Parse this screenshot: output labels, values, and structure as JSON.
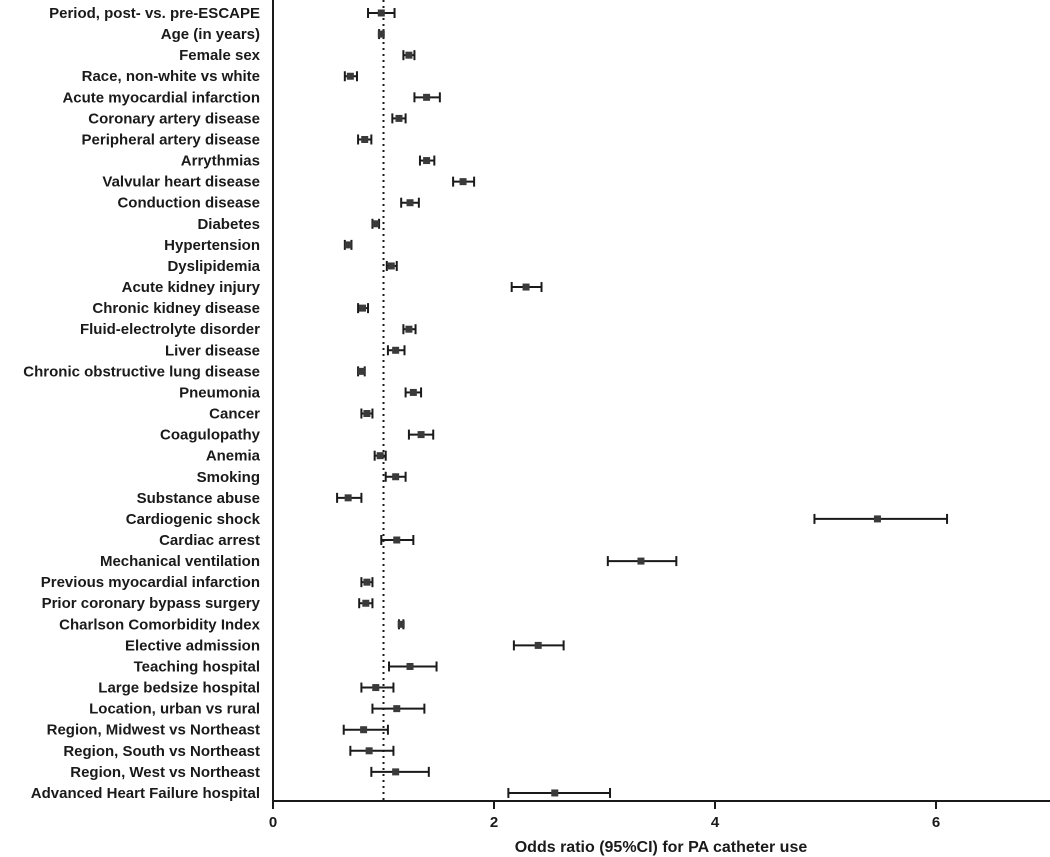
{
  "chart_data": {
    "type": "forest",
    "xlabel": "Odds ratio (95%CI) for PA catheter use",
    "xlim": [
      0,
      7
    ],
    "xticks": [
      0,
      2,
      4,
      6
    ],
    "reference_line": 1,
    "rows": [
      {
        "label": "Period, post- vs. pre-ESCAPE",
        "or": 0.98,
        "lo": 0.86,
        "hi": 1.1
      },
      {
        "label": "Age (in years)",
        "or": 0.98,
        "lo": 0.96,
        "hi": 1.0
      },
      {
        "label": "Female sex",
        "or": 1.23,
        "lo": 1.18,
        "hi": 1.28
      },
      {
        "label": "Race, non-white vs white",
        "or": 0.7,
        "lo": 0.65,
        "hi": 0.76
      },
      {
        "label": "Acute myocardial infarction",
        "or": 1.39,
        "lo": 1.28,
        "hi": 1.51
      },
      {
        "label": "Coronary artery disease",
        "or": 1.14,
        "lo": 1.08,
        "hi": 1.2
      },
      {
        "label": "Peripheral artery disease",
        "or": 0.83,
        "lo": 0.77,
        "hi": 0.89
      },
      {
        "label": "Arrythmias",
        "or": 1.39,
        "lo": 1.33,
        "hi": 1.46
      },
      {
        "label": "Valvular heart disease",
        "or": 1.72,
        "lo": 1.63,
        "hi": 1.82
      },
      {
        "label": "Conduction disease",
        "or": 1.24,
        "lo": 1.16,
        "hi": 1.32
      },
      {
        "label": "Diabetes",
        "or": 0.93,
        "lo": 0.9,
        "hi": 0.96
      },
      {
        "label": "Hypertension",
        "or": 0.68,
        "lo": 0.65,
        "hi": 0.71
      },
      {
        "label": "Dyslipidemia",
        "or": 1.07,
        "lo": 1.03,
        "hi": 1.12
      },
      {
        "label": "Acute kidney injury",
        "or": 2.29,
        "lo": 2.16,
        "hi": 2.43
      },
      {
        "label": "Chronic kidney disease",
        "or": 0.81,
        "lo": 0.77,
        "hi": 0.86
      },
      {
        "label": "Fluid-electrolyte disorder",
        "or": 1.23,
        "lo": 1.18,
        "hi": 1.29
      },
      {
        "label": "Liver disease",
        "or": 1.11,
        "lo": 1.04,
        "hi": 1.19
      },
      {
        "label": "Chronic obstructive lung disease",
        "or": 0.8,
        "lo": 0.77,
        "hi": 0.83
      },
      {
        "label": "Pneumonia",
        "or": 1.27,
        "lo": 1.2,
        "hi": 1.34
      },
      {
        "label": "Cancer",
        "or": 0.85,
        "lo": 0.8,
        "hi": 0.9
      },
      {
        "label": "Coagulopathy",
        "or": 1.34,
        "lo": 1.23,
        "hi": 1.45
      },
      {
        "label": "Anemia",
        "or": 0.97,
        "lo": 0.92,
        "hi": 1.02
      },
      {
        "label": "Smoking",
        "or": 1.11,
        "lo": 1.02,
        "hi": 1.2
      },
      {
        "label": "Substance abuse",
        "or": 0.68,
        "lo": 0.58,
        "hi": 0.8
      },
      {
        "label": "Cardiogenic shock",
        "or": 5.47,
        "lo": 4.9,
        "hi": 6.1
      },
      {
        "label": "Cardiac arrest",
        "or": 1.12,
        "lo": 0.98,
        "hi": 1.27
      },
      {
        "label": "Mechanical ventilation",
        "or": 3.33,
        "lo": 3.03,
        "hi": 3.65
      },
      {
        "label": "Previous myocardial infarction",
        "or": 0.85,
        "lo": 0.8,
        "hi": 0.9
      },
      {
        "label": "Prior coronary bypass surgery",
        "or": 0.84,
        "lo": 0.78,
        "hi": 0.9
      },
      {
        "label": "Charlson Comorbidity Index",
        "or": 1.16,
        "lo": 1.14,
        "hi": 1.18
      },
      {
        "label": "Elective admission",
        "or": 2.4,
        "lo": 2.18,
        "hi": 2.63
      },
      {
        "label": "Teaching hospital",
        "or": 1.24,
        "lo": 1.05,
        "hi": 1.48
      },
      {
        "label": "Large bedsize hospital",
        "or": 0.93,
        "lo": 0.8,
        "hi": 1.09
      },
      {
        "label": "Location, urban vs rural",
        "or": 1.12,
        "lo": 0.9,
        "hi": 1.37
      },
      {
        "label": "Region, Midwest vs Northeast",
        "or": 0.82,
        "lo": 0.64,
        "hi": 1.04
      },
      {
        "label": "Region, South vs Northeast",
        "or": 0.87,
        "lo": 0.7,
        "hi": 1.09
      },
      {
        "label": "Region, West vs Northeast",
        "or": 1.11,
        "lo": 0.89,
        "hi": 1.41
      },
      {
        "label": "Advanced Heart Failure hospital",
        "or": 2.55,
        "lo": 2.13,
        "hi": 3.05
      }
    ]
  }
}
